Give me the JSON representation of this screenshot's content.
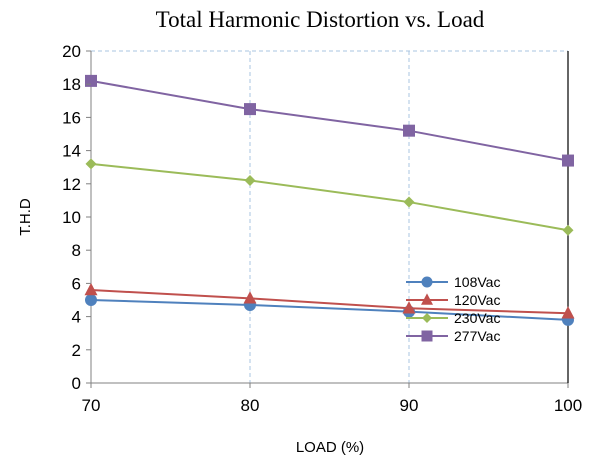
{
  "chart_data": {
    "type": "line",
    "title": "Total Harmonic Distortion vs. Load",
    "xlabel": "LOAD (%)",
    "ylabel": "T.H.D",
    "x": [
      70,
      80,
      90,
      100
    ],
    "xlim": [
      70,
      100
    ],
    "ylim": [
      0,
      20
    ],
    "x_ticks": [
      "70",
      "80",
      "90",
      "100"
    ],
    "y_ticks": [
      "0",
      "2",
      "4",
      "6",
      "8",
      "10",
      "12",
      "14",
      "16",
      "18",
      "20"
    ],
    "grid": "vertical dashed",
    "legend_position": "lower-right",
    "series": [
      {
        "name": "108Vac",
        "values": [
          5.0,
          4.7,
          4.3,
          3.8
        ],
        "color": "#4f81bd",
        "marker": "circle"
      },
      {
        "name": "120Vac",
        "values": [
          5.6,
          5.1,
          4.5,
          4.2
        ],
        "color": "#c0504d",
        "marker": "triangle"
      },
      {
        "name": "230Vac",
        "values": [
          13.2,
          12.2,
          10.9,
          9.2
        ],
        "color": "#9bbb59",
        "marker": "diamond"
      },
      {
        "name": "277Vac",
        "values": [
          18.2,
          16.5,
          15.2,
          13.4
        ],
        "color": "#8064a2",
        "marker": "square"
      }
    ]
  }
}
